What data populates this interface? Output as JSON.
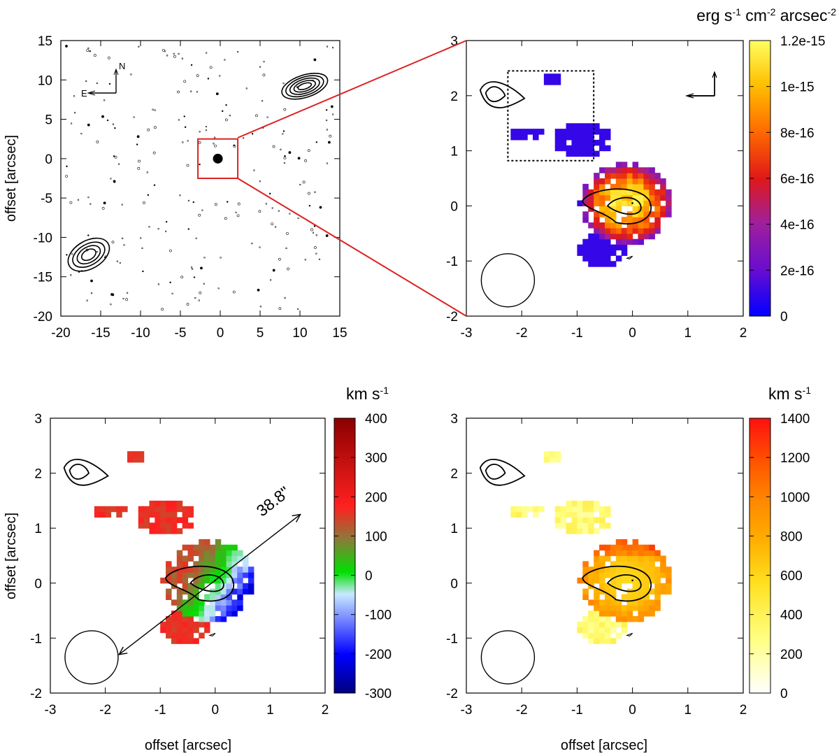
{
  "chart_data": [
    {
      "id": "overview",
      "type": "contour",
      "xlabel": "",
      "ylabel": "offset [arcsec]",
      "xlim": [
        -20,
        15
      ],
      "ylim": [
        -20,
        15
      ],
      "x_ticks": [
        "-20",
        "-15",
        "-10",
        "-5",
        "0",
        "5",
        "10",
        "15"
      ],
      "y_ticks": [
        "15",
        "10",
        "5",
        "0",
        "-5",
        "-10",
        "-15",
        "-20"
      ],
      "compass": {
        "north": "N",
        "east": "E"
      },
      "zoom_box": {
        "x": [
          -2.8,
          2.2
        ],
        "y": [
          -2.5,
          2.5
        ]
      },
      "grid": false
    },
    {
      "id": "flux",
      "type": "heatmap",
      "xlabel": "",
      "ylabel": "",
      "xlim": [
        -3,
        2
      ],
      "ylim": [
        -2,
        3
      ],
      "x_ticks": [
        "-3",
        "-2",
        "-1",
        "0",
        "1",
        "2"
      ],
      "y_ticks": [
        "3",
        "2",
        "1",
        "0",
        "-1",
        "-2"
      ],
      "colorbar": {
        "unit_base": [
          "erg s",
          " cm",
          " arcsec"
        ],
        "unit_sup": [
          "-1",
          "-2",
          "-2"
        ],
        "range": [
          0,
          1.2e-15
        ],
        "ticks": [
          "1.2e-15",
          "1e-15",
          "8e-16",
          "6e-16",
          "4e-16",
          "2e-16",
          "0"
        ],
        "colors": [
          "#0000ff",
          "#6a0dd0",
          "#a0209a",
          "#e01818",
          "#ff6a00",
          "#ffc000",
          "#ffff60"
        ]
      },
      "box_region": {
        "x": [
          -2.25,
          -0.7
        ],
        "y": [
          0.82,
          2.45
        ]
      },
      "grid": false
    },
    {
      "id": "velocity",
      "type": "heatmap",
      "xlabel": "offset [arcsec]",
      "ylabel": "offset [arcsec]",
      "xlim": [
        -3,
        2
      ],
      "ylim": [
        -2,
        3
      ],
      "x_ticks": [
        "-3",
        "-2",
        "-1",
        "0",
        "1",
        "2"
      ],
      "y_ticks": [
        "3",
        "2",
        "1",
        "0",
        "-1",
        "-2"
      ],
      "colorbar": {
        "unit_base": [
          "km s"
        ],
        "unit_sup": [
          "-1"
        ],
        "range": [
          -300,
          400
        ],
        "ticks": [
          "400",
          "300",
          "200",
          "100",
          "0",
          "-100",
          "-200",
          "-300"
        ],
        "colors": [
          "#000080",
          "#0000ff",
          "#c8e8ff",
          "#00e000",
          "#8b7a3a",
          "#ff2020",
          "#8b0000"
        ]
      },
      "annotation": "38.8\"",
      "grid": false
    },
    {
      "id": "dispersion",
      "type": "heatmap",
      "xlabel": "offset [arcsec]",
      "ylabel": "",
      "xlim": [
        -3,
        2
      ],
      "ylim": [
        -2,
        3
      ],
      "x_ticks": [
        "-3",
        "-2",
        "-1",
        "0",
        "1",
        "2"
      ],
      "y_ticks": [
        "3",
        "2",
        "1",
        "0",
        "-1",
        "-2"
      ],
      "colorbar": {
        "unit_base": [
          "km s"
        ],
        "unit_sup": [
          "-1"
        ],
        "range": [
          0,
          1400
        ],
        "ticks": [
          "1400",
          "1200",
          "1000",
          "800",
          "600",
          "400",
          "200",
          "0"
        ],
        "colors": [
          "#ffffff",
          "#ffff80",
          "#ffe020",
          "#ffb000",
          "#ff8800",
          "#ff5000",
          "#ff1010"
        ]
      },
      "grid": false
    }
  ]
}
